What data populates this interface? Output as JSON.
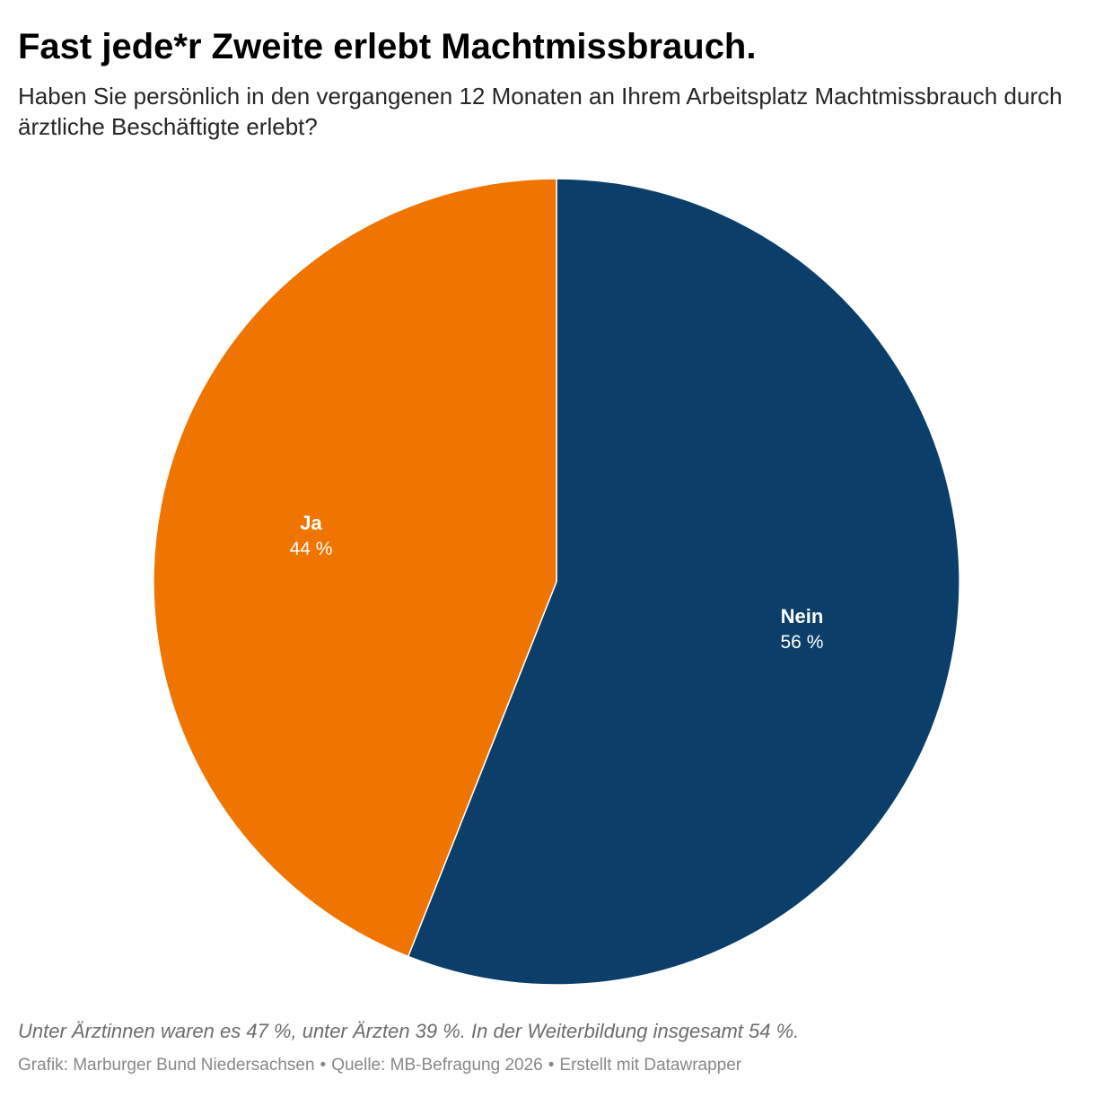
{
  "header": {
    "title": "Fast jede*r Zweite erlebt Machtmissbrauch.",
    "subtitle": "Haben Sie persönlich in den vergangenen 12 Monaten an Ihrem Arbeitsplatz Machtmissbrauch durch ärztliche Beschäftigte erlebt?"
  },
  "chart_data": {
    "type": "pie",
    "start_angle_deg": 0,
    "direction": "clockwise",
    "slices": [
      {
        "label": "Nein",
        "value": 56,
        "value_label": "56 %",
        "color": "#0b3f69"
      },
      {
        "label": "Ja",
        "value": 44,
        "value_label": "44 %",
        "color": "#ef7400"
      }
    ]
  },
  "footer": {
    "notes": "Unter Ärztinnen waren es 47 %, unter Ärzten 39 %. In der Weiterbildung insgesamt 54 %.",
    "credit": "Grafik: Marburger Bund Niedersachsen",
    "source": "Quelle: MB-Befragung 2026",
    "made_with": "Erstellt mit Datawrapper",
    "separator": "•"
  }
}
